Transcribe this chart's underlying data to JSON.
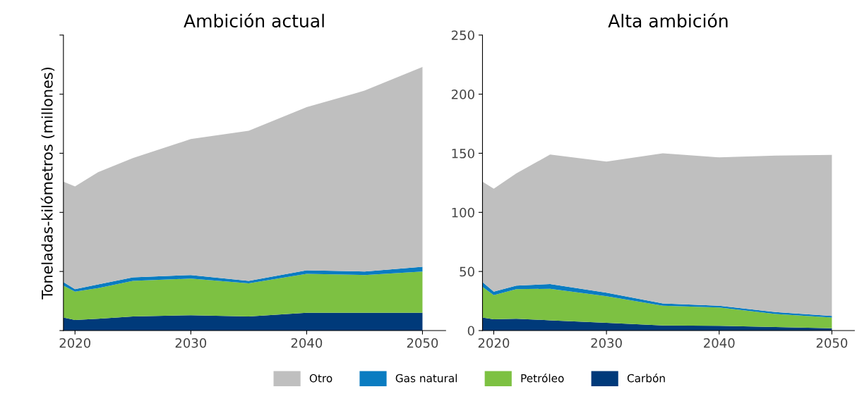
{
  "chart_data": [
    {
      "type": "area",
      "stacked": true,
      "title": "Ambición actual",
      "ylabel": "Toneladas-kilómetros (millones)",
      "x": [
        2019,
        2020,
        2022,
        2025,
        2030,
        2035,
        2040,
        2045,
        2050
      ],
      "xlim": [
        2019,
        2052
      ],
      "xticks": [
        2020,
        2030,
        2040,
        2050
      ],
      "ylim": [
        0,
        250
      ],
      "yticks": [
        0,
        50,
        100,
        150,
        200,
        250
      ],
      "legend": "bottom",
      "tick_labels": "x",
      "series": [
        {
          "name": "Carbón",
          "color": "#003a7a",
          "values": [
            11,
            9,
            10,
            12,
            13,
            12,
            15,
            15,
            15
          ]
        },
        {
          "name": "Petróleo",
          "color": "#7dc142",
          "values": [
            27,
            24,
            26,
            30,
            31,
            28,
            33,
            32,
            35
          ]
        },
        {
          "name": "Gas natural",
          "color": "#0a7cc1",
          "values": [
            3,
            2,
            3,
            3,
            3,
            2,
            3,
            3,
            4
          ]
        },
        {
          "name": "Otro",
          "color": "#bfbfbf",
          "values": [
            85,
            87,
            95,
            101,
            115,
            127,
            138,
            153,
            169
          ]
        }
      ]
    },
    {
      "type": "area",
      "stacked": true,
      "title": "Alta ambición",
      "x": [
        2019,
        2020,
        2022,
        2025,
        2030,
        2035,
        2040,
        2045,
        2050
      ],
      "xlim": [
        2019,
        2052
      ],
      "xticks": [
        2020,
        2030,
        2040,
        2050
      ],
      "ylim": [
        0,
        250
      ],
      "yticks": [
        0,
        50,
        100,
        150,
        200,
        250
      ],
      "legend": "bottom",
      "series": [
        {
          "name": "Carbón",
          "color": "#003a7a",
          "values": [
            11,
            9.5,
            10,
            8.7,
            6.5,
            4.3,
            4,
            3,
            2
          ]
        },
        {
          "name": "Petróleo",
          "color": "#7dc142",
          "values": [
            26,
            20.5,
            25,
            26.7,
            22.5,
            16.7,
            15.5,
            11,
            9
          ]
        },
        {
          "name": "Gas natural",
          "color": "#0a7cc1",
          "values": [
            4,
            3,
            3,
            4,
            3,
            2,
            1.5,
            1.6,
            1.4
          ]
        },
        {
          "name": "Otro",
          "color": "#bfbfbf",
          "values": [
            85,
            87,
            95,
            109.5,
            111,
            127,
            125.5,
            132.4,
            136.2
          ]
        }
      ]
    }
  ]
}
